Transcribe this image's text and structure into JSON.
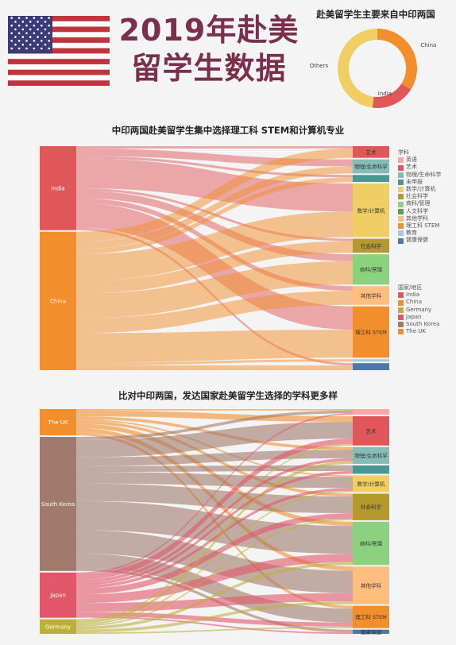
{
  "title": {
    "line1": "2019年赴美",
    "line2": "留学生数据"
  },
  "colors": {
    "India": "#e15759",
    "China": "#f28e2b",
    "Germany": "#bcb03a",
    "Japan": "#e15769",
    "South Korea": "#a07a6c",
    "The UK": "#f28e2b",
    "英语": "#f8a7a8",
    "艺术": "#e15759",
    "物理/生命科学": "#86bcb6",
    "未申报": "#499894",
    "数学/计算机": "#f1ce63",
    "社会科学": "#b6992d",
    "商科/管理": "#8cd17d",
    "人文科学": "#59a14f",
    "其他学科": "#ffbe7d",
    "理工科 STEM": "#f28e2b",
    "教育": "#a0cbe8",
    "健康保健": "#4e79a7"
  },
  "chart_data": [
    {
      "type": "pie",
      "title": "赴美留学生主要来自中印两国",
      "labels": [
        "China",
        "India",
        "Others"
      ],
      "values": [
        34,
        18,
        48
      ],
      "colors": [
        "#f28e2b",
        "#e15759",
        "#f1ce63"
      ]
    },
    {
      "type": "sankey",
      "title": "中印两国赴美留学生集中选择理工科 STEM和计算机专业",
      "sources": [
        "India",
        "China"
      ],
      "targets": [
        "艺术",
        "物理/生命科学",
        "未申报",
        "数学/计算机",
        "社会科学",
        "商科/管理",
        "其他学科",
        "理工科 STEM",
        "教育",
        "健康保健"
      ],
      "target_labels": [
        "艺术",
        "物理/生命科学",
        "",
        "数学/计算机",
        "社会科学",
        "商科/管理",
        "其他学科",
        "理工科 STEM",
        "",
        ""
      ],
      "flows": [
        {
          "source": "India",
          "target": "艺术",
          "value": 1
        },
        {
          "source": "India",
          "target": "物理/生命科学",
          "value": 3
        },
        {
          "source": "India",
          "target": "未申报",
          "value": 1
        },
        {
          "source": "India",
          "target": "数学/计算机",
          "value": 12
        },
        {
          "source": "India",
          "target": "社会科学",
          "value": 1
        },
        {
          "source": "India",
          "target": "商科/管理",
          "value": 3
        },
        {
          "source": "India",
          "target": "其他学科",
          "value": 2
        },
        {
          "source": "India",
          "target": "理工科 STEM",
          "value": 10
        },
        {
          "source": "India",
          "target": "健康保健",
          "value": 1
        },
        {
          "source": "China",
          "target": "艺术",
          "value": 4
        },
        {
          "source": "China",
          "target": "物理/生命科学",
          "value": 3
        },
        {
          "source": "China",
          "target": "未申报",
          "value": 2
        },
        {
          "source": "China",
          "target": "数学/计算机",
          "value": 11
        },
        {
          "source": "China",
          "target": "社会科学",
          "value": 5
        },
        {
          "source": "China",
          "target": "商科/管理",
          "value": 10
        },
        {
          "source": "China",
          "target": "其他学科",
          "value": 6
        },
        {
          "source": "China",
          "target": "理工科 STEM",
          "value": 12
        },
        {
          "source": "China",
          "target": "教育",
          "value": 1
        },
        {
          "source": "China",
          "target": "健康保健",
          "value": 2
        }
      ]
    },
    {
      "type": "sankey",
      "title": "比对中印两国，发达国家赴美留学生选择的学科更多样",
      "sources": [
        "The UK",
        "South Korea",
        "Japan",
        "Germany"
      ],
      "targets": [
        "英语",
        "艺术",
        "物理/生命科学",
        "未申报",
        "数学/计算机",
        "社会科学",
        "商科/管理",
        "其他学科",
        "理工科 STEM",
        "健康保健"
      ],
      "target_labels": [
        "",
        "艺术",
        "物理/生命科学",
        "",
        "数学/计算机",
        "社会科学",
        "商科/管理",
        "其他学科",
        "理工科 STEM",
        "健康保健"
      ],
      "flows": [
        {
          "source": "The UK",
          "target": "英语",
          "value": 0.5
        },
        {
          "source": "The UK",
          "target": "艺术",
          "value": 2
        },
        {
          "source": "The UK",
          "target": "物理/生命科学",
          "value": 1
        },
        {
          "source": "The UK",
          "target": "数学/计算机",
          "value": 0.5
        },
        {
          "source": "The UK",
          "target": "社会科学",
          "value": 1
        },
        {
          "source": "The UK",
          "target": "商科/管理",
          "value": 1.5
        },
        {
          "source": "The UK",
          "target": "其他学科",
          "value": 1.5
        },
        {
          "source": "The UK",
          "target": "理工科 STEM",
          "value": 1
        },
        {
          "source": "South Korea",
          "target": "英语",
          "value": 1
        },
        {
          "source": "South Korea",
          "target": "艺术",
          "value": 6
        },
        {
          "source": "South Korea",
          "target": "物理/生命科学",
          "value": 3
        },
        {
          "source": "South Korea",
          "target": "未申报",
          "value": 2
        },
        {
          "source": "South Korea",
          "target": "数学/计算机",
          "value": 4
        },
        {
          "source": "South Korea",
          "target": "社会科学",
          "value": 6
        },
        {
          "source": "South Korea",
          "target": "商科/管理",
          "value": 10
        },
        {
          "source": "South Korea",
          "target": "其他学科",
          "value": 8
        },
        {
          "source": "South Korea",
          "target": "理工科 STEM",
          "value": 5
        },
        {
          "source": "South Korea",
          "target": "健康保健",
          "value": 1
        },
        {
          "source": "Japan",
          "target": "英语",
          "value": 0.5
        },
        {
          "source": "Japan",
          "target": "艺术",
          "value": 2
        },
        {
          "source": "Japan",
          "target": "物理/生命科学",
          "value": 1
        },
        {
          "source": "Japan",
          "target": "未申报",
          "value": 1
        },
        {
          "source": "Japan",
          "target": "数学/计算机",
          "value": 1
        },
        {
          "source": "Japan",
          "target": "社会科学",
          "value": 2
        },
        {
          "source": "Japan",
          "target": "商科/管理",
          "value": 3
        },
        {
          "source": "Japan",
          "target": "其他学科",
          "value": 3
        },
        {
          "source": "Japan",
          "target": "理工科 STEM",
          "value": 1.5
        },
        {
          "source": "Japan",
          "target": "健康保健",
          "value": 0.5
        },
        {
          "source": "Germany",
          "target": "艺术",
          "value": 0.5
        },
        {
          "source": "Germany",
          "target": "物理/生命科学",
          "value": 1
        },
        {
          "source": "Germany",
          "target": "数学/计算机",
          "value": 0.5
        },
        {
          "source": "Germany",
          "target": "社会科学",
          "value": 0.5
        },
        {
          "source": "Germany",
          "target": "商科/管理",
          "value": 1
        },
        {
          "source": "Germany",
          "target": "其他学科",
          "value": 1
        },
        {
          "source": "Germany",
          "target": "理工科 STEM",
          "value": 0.5
        }
      ]
    }
  ],
  "legend_subject": {
    "title": "学科",
    "items": [
      "英语",
      "艺术",
      "物理/生命科学",
      "未申报",
      "数学/计算机",
      "社会科学",
      "商科/管理",
      "人文科学",
      "其他学科",
      "理工科 STEM",
      "教育",
      "健康保健"
    ]
  },
  "legend_country": {
    "title": "国家/地区",
    "items": [
      "India",
      "China",
      "Germany",
      "Japan",
      "South Korea",
      "The UK"
    ]
  }
}
